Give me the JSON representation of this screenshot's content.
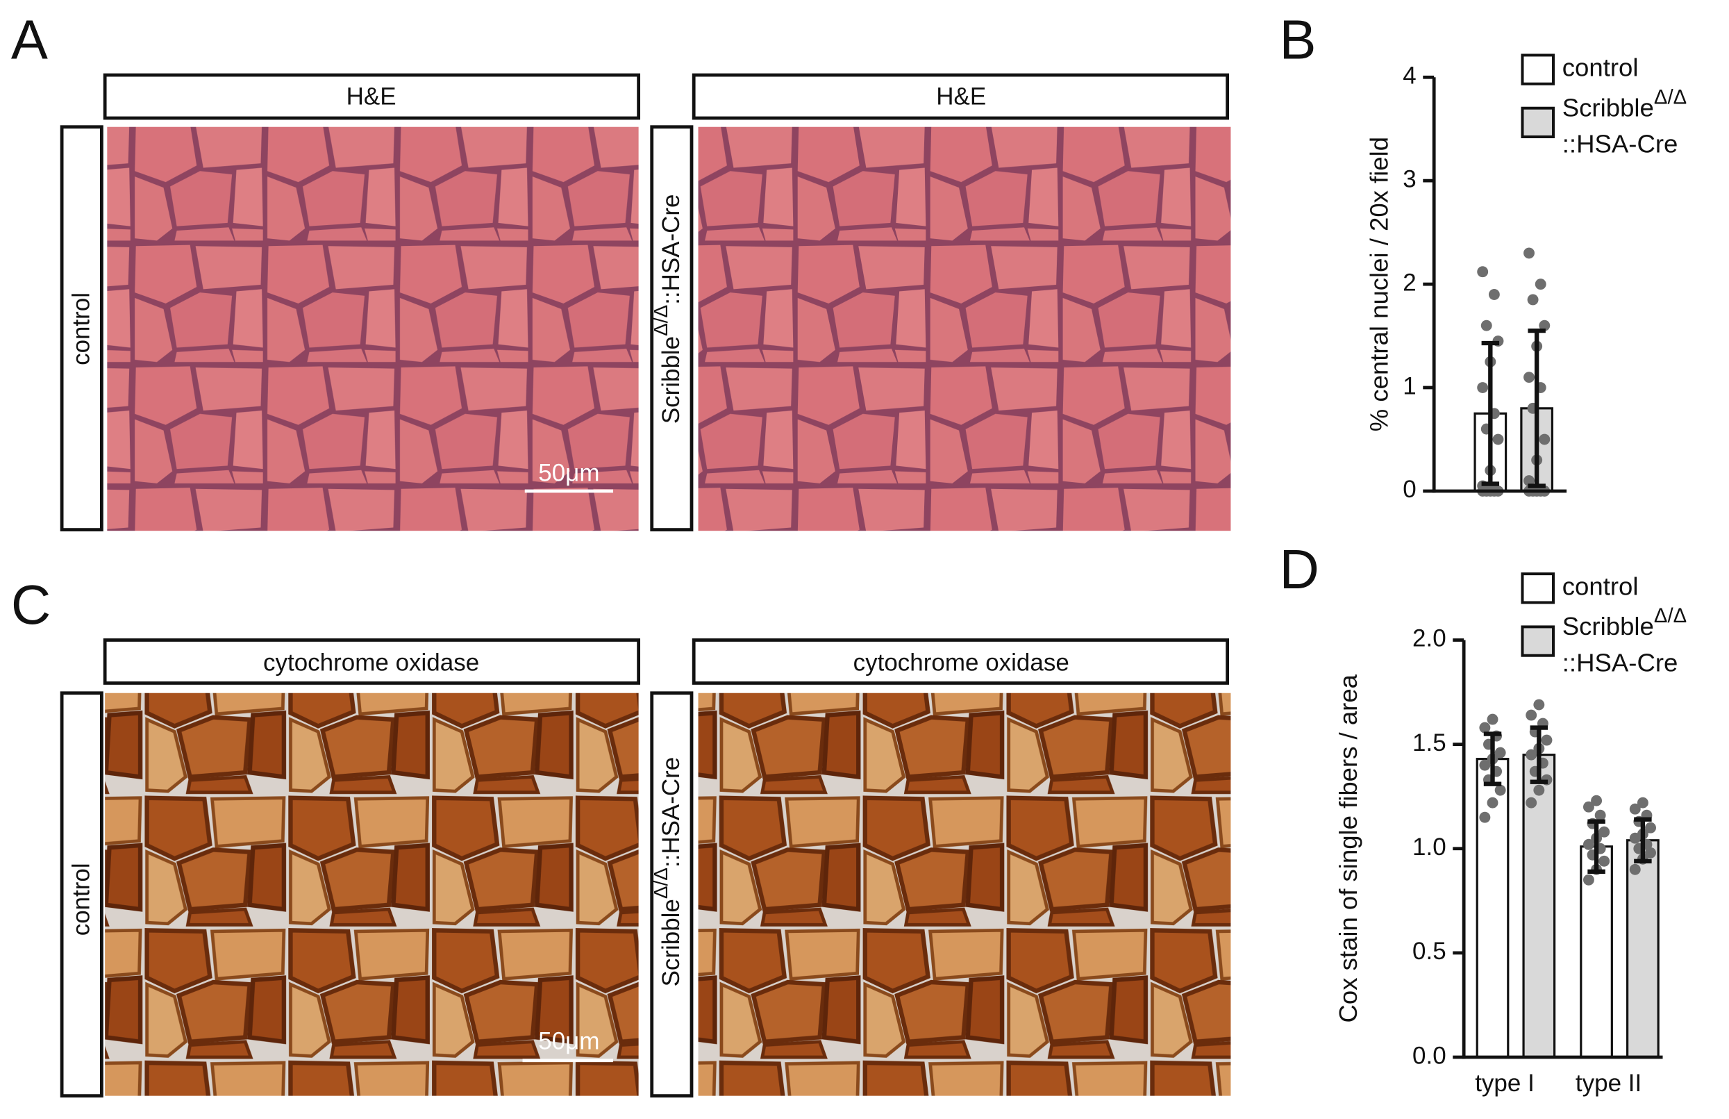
{
  "figure": {
    "panels": [
      "A",
      "B",
      "C",
      "D"
    ],
    "micrographs": [
      {
        "headers": [
          "H&E",
          "H&E"
        ],
        "conditions": [
          "control",
          "ScribbleΔ/Δ::HSA-Cre"
        ],
        "scale_bar": "50μm"
      },
      {
        "headers": [
          "cytochrome oxidase",
          "cytochrome oxidase"
        ],
        "conditions": [
          "control",
          "ScribbleΔ/Δ::HSA-Cre"
        ],
        "scale_bar": "50μm"
      }
    ]
  },
  "chart_data": [
    {
      "type": "bar",
      "ylabel": "% central nuclei / 20x field",
      "categories": [
        null
      ],
      "ylim": [
        0,
        4
      ],
      "yticks": [
        0,
        1,
        2,
        3,
        4
      ],
      "series": [
        {
          "name": "control",
          "color": "#ffffff",
          "values": [
            0.75
          ],
          "errors": [
            0.68
          ],
          "points": [
            [
              0,
              0,
              0,
              0,
              0,
              0.05,
              0.2,
              0.5,
              0.6,
              0.75,
              1.0,
              1.25,
              1.45,
              1.6,
              1.9,
              2.12
            ]
          ]
        },
        {
          "name": "ScribbleΔ/Δ::HSA-Cre",
          "color": "#d9d9d9",
          "values": [
            0.8
          ],
          "errors": [
            0.75
          ],
          "points": [
            [
              0,
              0,
              0,
              0,
              0,
              0.1,
              0.3,
              0.5,
              0.8,
              1.0,
              1.1,
              1.4,
              1.6,
              1.85,
              2.0,
              2.3
            ]
          ]
        }
      ]
    },
    {
      "type": "bar",
      "ylabel": "Cox stain of single fibers / area",
      "categories": [
        "type I",
        "type II"
      ],
      "ylim": [
        0,
        2
      ],
      "yticks": [
        {
          "value": 0,
          "label": "0.0"
        },
        {
          "value": 0.5,
          "label": "0.5"
        },
        {
          "value": 1,
          "label": "1.0"
        },
        {
          "value": 1.5,
          "label": "1.5"
        },
        {
          "value": 2,
          "label": "2.0"
        }
      ],
      "series": [
        {
          "name": "control",
          "color": "#ffffff",
          "values": [
            1.43,
            1.01
          ],
          "errors": [
            0.12,
            0.12
          ],
          "points": [
            [
              1.15,
              1.22,
              1.28,
              1.33,
              1.37,
              1.4,
              1.43,
              1.46,
              1.5,
              1.54,
              1.58,
              1.62
            ],
            [
              0.85,
              0.9,
              0.94,
              0.97,
              1.0,
              1.02,
              1.05,
              1.08,
              1.12,
              1.16,
              1.2,
              1.23
            ]
          ]
        },
        {
          "name": "ScribbleΔ/Δ::HSA-Cre",
          "color": "#d9d9d9",
          "values": [
            1.45,
            1.04
          ],
          "errors": [
            0.13,
            0.1
          ],
          "points": [
            [
              1.22,
              1.28,
              1.33,
              1.37,
              1.41,
              1.45,
              1.48,
              1.52,
              1.56,
              1.6,
              1.64,
              1.69
            ],
            [
              0.9,
              0.95,
              0.98,
              1.0,
              1.02,
              1.05,
              1.07,
              1.1,
              1.13,
              1.16,
              1.19,
              1.22
            ]
          ]
        }
      ]
    }
  ]
}
